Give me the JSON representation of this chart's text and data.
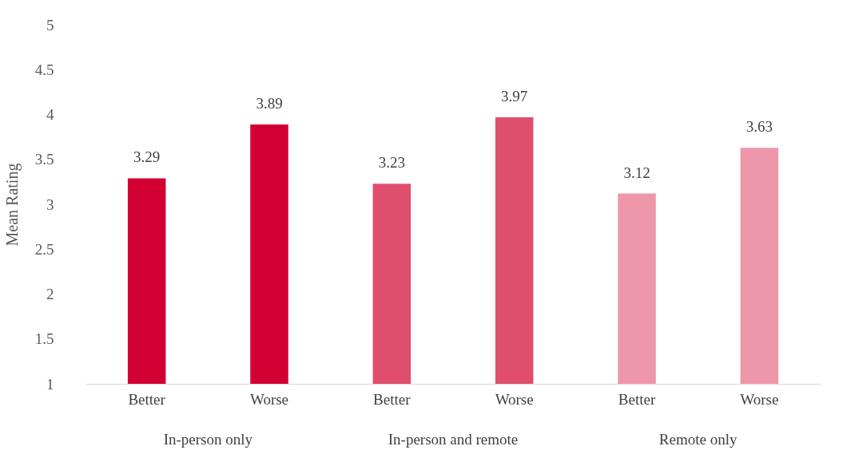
{
  "chart_data": {
    "type": "bar",
    "ylabel": "Mean Rating",
    "categories": [
      "Better",
      "Worse",
      "Better",
      "Worse",
      "Better",
      "Worse"
    ],
    "values": [
      3.29,
      3.89,
      3.23,
      3.97,
      3.12,
      3.63
    ],
    "colors": [
      "#d20032",
      "#d20032",
      "#e04e6e",
      "#e04e6e",
      "#ee97ab",
      "#ee97ab"
    ],
    "annotations": [
      "In-person only",
      "In-person and remote",
      "Remote only"
    ],
    "ylim": [
      1,
      5
    ],
    "yticks": [
      1,
      1.5,
      2,
      2.5,
      3,
      3.5,
      4,
      4.5,
      5
    ],
    "data_labels": true,
    "grid": false
  }
}
